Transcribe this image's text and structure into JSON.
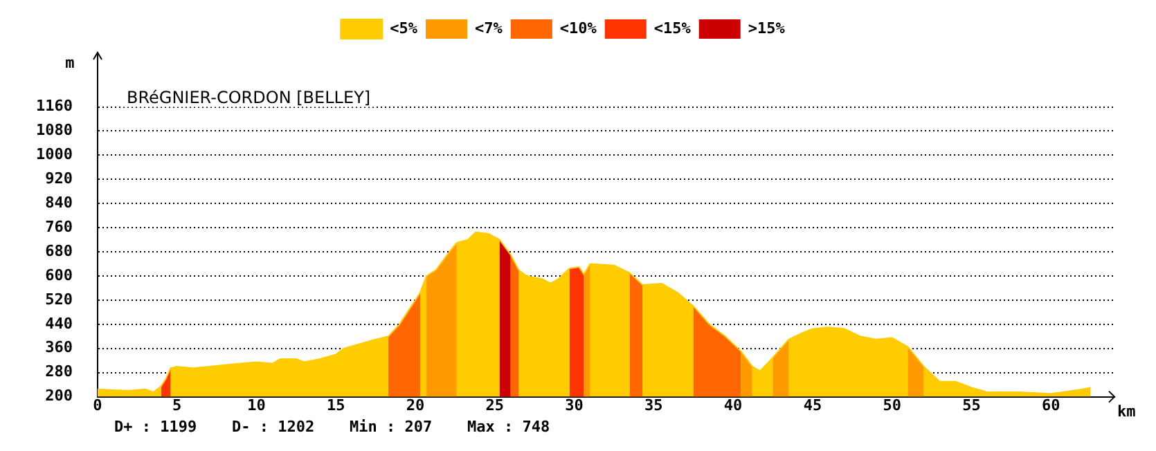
{
  "chart_data": {
    "type": "area",
    "title": "BRéGNIER-CORDON [BELLEY]",
    "xlabel": "km",
    "ylabel": "m",
    "x": [
      0,
      1,
      2,
      3,
      3.5,
      4,
      4.3,
      4.6,
      5,
      6,
      7,
      8,
      9,
      10,
      11,
      11.5,
      12.5,
      13,
      14,
      15,
      15.5,
      16.5,
      17.5,
      18.3,
      19,
      19.5,
      20,
      20.3,
      20.7,
      21.3,
      22,
      22.6,
      23.3,
      23.8,
      24.6,
      25.3,
      26,
      26.5,
      27,
      28,
      28.5,
      29,
      29.7,
      30.3,
      30.6,
      31,
      32.5,
      33.5,
      34.3,
      35.5,
      36.5,
      37.5,
      38.5,
      39.5,
      40.5,
      41.2,
      41.7,
      42.5,
      43.5,
      44.3,
      45,
      46,
      47,
      48,
      49,
      50,
      51,
      52,
      53,
      54,
      55,
      56,
      58,
      60,
      62,
      62.5
    ],
    "series": [
      {
        "name": "<5%",
        "color": "#ffcc00",
        "values": [
          225,
          222,
          220,
          225,
          215,
          235,
          260,
          295,
          300,
          295,
          300,
          305,
          310,
          315,
          310,
          325,
          325,
          315,
          325,
          340,
          360,
          375,
          390,
          400,
          440,
          480,
          520,
          545,
          600,
          620,
          670,
          710,
          720,
          745,
          740,
          720,
          670,
          620,
          600,
          590,
          575,
          590,
          625,
          630,
          605,
          640,
          635,
          610,
          570,
          575,
          545,
          500,
          440,
          400,
          350,
          300,
          285,
          330,
          390,
          410,
          425,
          430,
          425,
          400,
          390,
          395,
          365,
          300,
          250,
          250,
          230,
          215,
          215,
          210,
          225,
          230
        ]
      },
      {
        "name": "<7%",
        "color": "#ff9900",
        "x": [
          20.7,
          21.3,
          22,
          22.6,
          22.8,
          30.6,
          31,
          31.2,
          40.5,
          41.2,
          41.5,
          42.5,
          43.5,
          43.7,
          51,
          52
        ],
        "values": [
          600,
          620,
          670,
          710,
          null,
          605,
          640,
          null,
          350,
          300,
          null,
          330,
          390,
          null,
          365,
          300
        ]
      },
      {
        "name": "<10%",
        "color": "#ff6600",
        "x": [
          18.3,
          19,
          19.5,
          20,
          20.3,
          20.5,
          26,
          26.5,
          26.7,
          33.5,
          34.3,
          34.5,
          37.5,
          38.5,
          39.5,
          40.5
        ],
        "values": [
          400,
          440,
          480,
          520,
          545,
          null,
          670,
          620,
          null,
          610,
          570,
          null,
          500,
          440,
          400,
          350
        ]
      },
      {
        "name": "<15%",
        "color": "#ff3300",
        "x": [
          4,
          4.3,
          4.6,
          4.8,
          29.7,
          30.3,
          30.6
        ],
        "values": [
          235,
          260,
          295,
          null,
          625,
          630,
          605
        ]
      },
      {
        "name": ">15%",
        "color": "#cc0000",
        "x": [
          25.3,
          26
        ],
        "values": [
          720,
          670
        ]
      }
    ],
    "xlim": [
      0,
      64
    ],
    "xticks": [
      0,
      5,
      10,
      15,
      20,
      25,
      30,
      35,
      40,
      45,
      50,
      55,
      60
    ],
    "ylim": [
      200,
      1340
    ],
    "yticks": [
      200,
      280,
      360,
      440,
      520,
      600,
      680,
      760,
      840,
      920,
      1000,
      1080,
      1160
    ],
    "grid": "y",
    "legend": "top",
    "annotations": [
      "D+ : 1199",
      "D- : 1202",
      "Min : 207",
      "Max : 748"
    ]
  }
}
